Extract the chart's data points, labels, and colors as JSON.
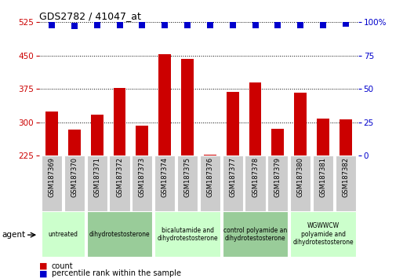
{
  "title": "GDS2782 / 41047_at",
  "samples": [
    "GSM187369",
    "GSM187370",
    "GSM187371",
    "GSM187372",
    "GSM187373",
    "GSM187374",
    "GSM187375",
    "GSM187376",
    "GSM187377",
    "GSM187378",
    "GSM187379",
    "GSM187380",
    "GSM187381",
    "GSM187382"
  ],
  "counts": [
    325,
    283,
    318,
    378,
    292,
    453,
    443,
    228,
    368,
    390,
    285,
    367,
    308,
    307
  ],
  "percentile_values": [
    98,
    97,
    98,
    98,
    98,
    98,
    98,
    98,
    98,
    98,
    98,
    98,
    98,
    99
  ],
  "ylim_left": [
    225,
    525
  ],
  "ylim_right": [
    0,
    100
  ],
  "yticks_left": [
    225,
    300,
    375,
    450,
    525
  ],
  "yticks_right": [
    0,
    25,
    50,
    75,
    100
  ],
  "bar_color": "#cc0000",
  "dot_color": "#0000cc",
  "dot_size": 30,
  "left_axis_color": "#cc0000",
  "right_axis_color": "#0000cc",
  "tick_label_bg": "#cccccc",
  "group_defs": [
    {
      "start": 0,
      "end": 1,
      "label": "untreated",
      "color": "#ccffcc"
    },
    {
      "start": 2,
      "end": 4,
      "label": "dihydrotestosterone",
      "color": "#99cc99"
    },
    {
      "start": 5,
      "end": 7,
      "label": "bicalutamide and\ndihydrotestosterone",
      "color": "#ccffcc"
    },
    {
      "start": 8,
      "end": 10,
      "label": "control polyamide an\ndihydrotestosterone",
      "color": "#99cc99"
    },
    {
      "start": 11,
      "end": 13,
      "label": "WGWWCW\npolyamide and\ndihydrotestosterone",
      "color": "#ccffcc"
    }
  ],
  "legend_count_color": "#cc0000",
  "legend_dot_color": "#0000cc"
}
